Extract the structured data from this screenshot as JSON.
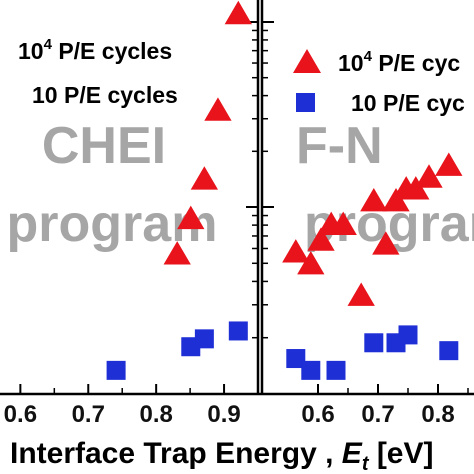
{
  "chart_data": [
    {
      "type": "scatter",
      "panel": "left",
      "watermark": [
        "CHEI",
        "program"
      ],
      "xlim": [
        0.57,
        0.95
      ],
      "ylim": [
        0,
        1
      ],
      "x_ticks": [
        0.6,
        0.7,
        0.8,
        0.9
      ],
      "x_tick_labels": [
        "0.6",
        "0.7",
        "0.8",
        "0.9"
      ],
      "legend": [
        {
          "base": "10",
          "sup": "4",
          "text": " P/E cycles"
        },
        {
          "base": "10",
          "sup": "",
          "text": " P/E cycles"
        }
      ],
      "series": [
        {
          "label": "10^4 P/E cycles",
          "marker": "triangle",
          "color": "#e8131b",
          "points": [
            [
              0.921,
              0.965
            ],
            [
              0.891,
              0.72
            ],
            [
              0.871,
              0.545
            ],
            [
              0.851,
              0.445
            ],
            [
              0.831,
              0.355
            ]
          ]
        },
        {
          "label": "10 P/E cycles",
          "marker": "square",
          "color": "#1f2fd6",
          "points": [
            [
              0.741,
              0.06
            ],
            [
              0.851,
              0.12
            ],
            [
              0.871,
              0.14
            ],
            [
              0.921,
              0.16
            ]
          ]
        }
      ]
    },
    {
      "type": "scatter",
      "panel": "right",
      "watermark": [
        "F-N",
        "program"
      ],
      "xlim": [
        0.5,
        0.86
      ],
      "ylim": [
        0,
        1
      ],
      "x_ticks": [
        0.6,
        0.7,
        0.8
      ],
      "x_tick_labels": [
        "0.6",
        "0.7",
        "0.8"
      ],
      "legend": [
        {
          "base": "10",
          "sup": "4",
          "text": " P/E cyc"
        },
        {
          "base": "10",
          "sup": "",
          "text": " P/E cyc"
        }
      ],
      "series": [
        {
          "label": "10^4 P/E cycles",
          "marker": "triangle",
          "color": "#e8131b",
          "points": [
            [
              0.563,
              0.36
            ],
            [
              0.588,
              0.33
            ],
            [
              0.605,
              0.39
            ],
            [
              0.622,
              0.43
            ],
            [
              0.642,
              0.43
            ],
            [
              0.672,
              0.25
            ],
            [
              0.693,
              0.49
            ],
            [
              0.713,
              0.38
            ],
            [
              0.73,
              0.49
            ],
            [
              0.747,
              0.52
            ],
            [
              0.763,
              0.52
            ],
            [
              0.785,
              0.55
            ],
            [
              0.818,
              0.58
            ]
          ]
        },
        {
          "label": "10 P/E cycles",
          "marker": "square",
          "color": "#1f2fd6",
          "points": [
            [
              0.563,
              0.09
            ],
            [
              0.588,
              0.06
            ],
            [
              0.63,
              0.06
            ],
            [
              0.693,
              0.13
            ],
            [
              0.73,
              0.13
            ],
            [
              0.75,
              0.15
            ],
            [
              0.818,
              0.11
            ]
          ]
        }
      ]
    }
  ],
  "xlabel_main": "Interface Trap Energy ,  ",
  "xlabel_var": "E",
  "xlabel_sub": "t",
  "xlabel_unit": " [eV]"
}
